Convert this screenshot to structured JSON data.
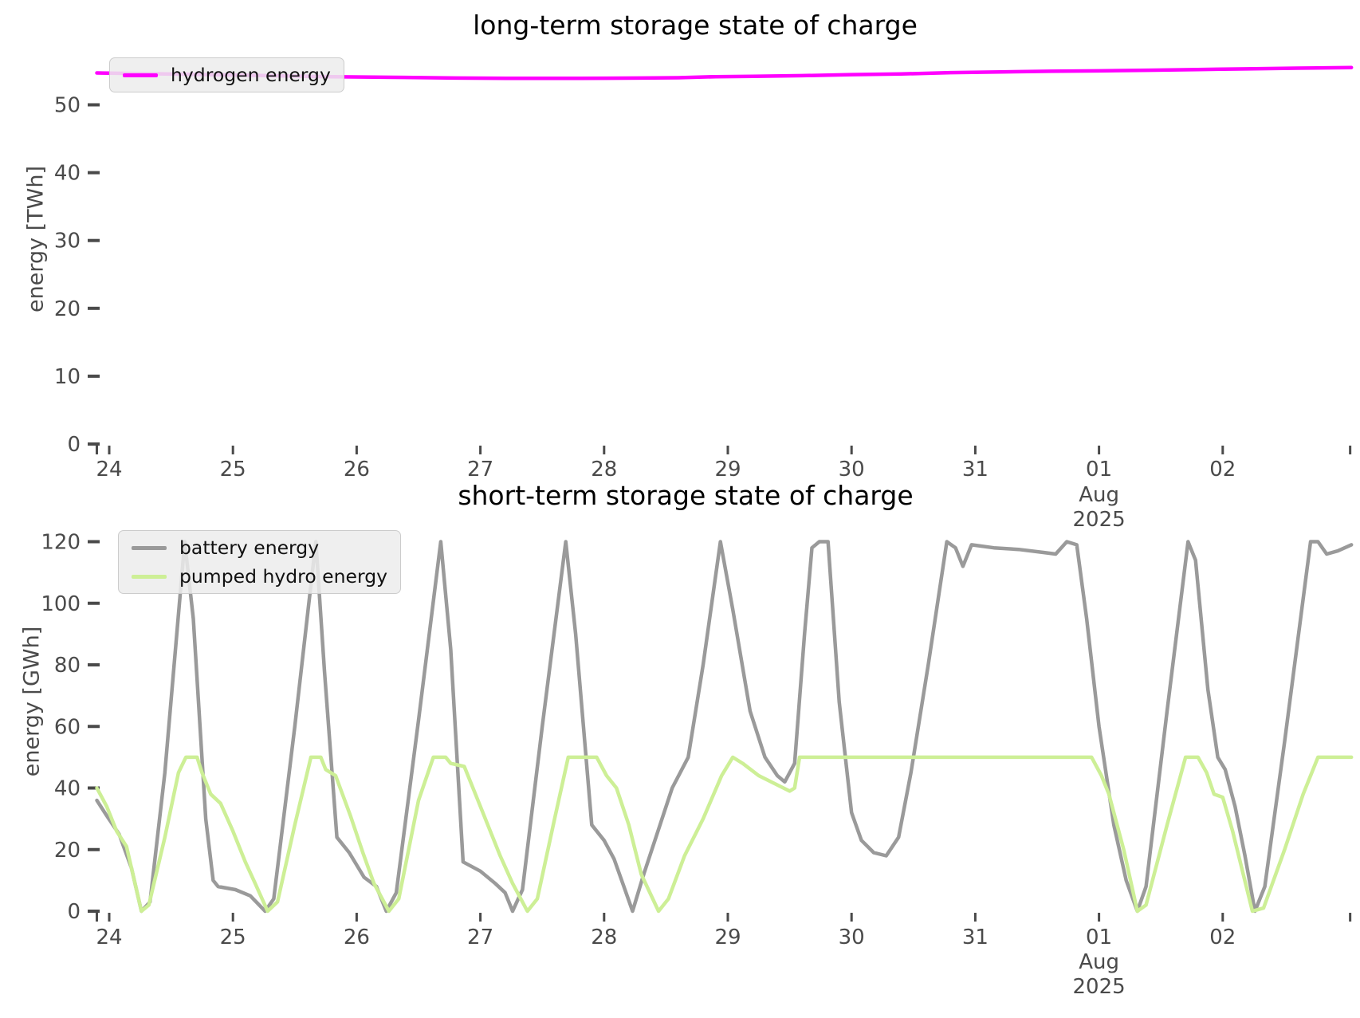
{
  "figure": {
    "background": "#ffffff",
    "tick_color": "#4a4a4a",
    "title_color": "#000000",
    "legend_bg": "#ececec",
    "legend_border": "#cccccc"
  },
  "chart_data": [
    {
      "type": "line",
      "title": "long-term storage state of charge",
      "ylabel": "energy [TWh]",
      "xlabel": "",
      "grid": false,
      "legend_position": "upper-left",
      "ylim": [
        0,
        58.2
      ],
      "xlim_days": [
        23.9,
        34.04
      ],
      "yticks": [
        0,
        10,
        20,
        30,
        40,
        50
      ],
      "xticks": [
        {
          "x": 23.9,
          "label": ""
        },
        {
          "x": 24,
          "label": "24"
        },
        {
          "x": 25,
          "label": "25"
        },
        {
          "x": 26,
          "label": "26"
        },
        {
          "x": 27,
          "label": "27"
        },
        {
          "x": 28,
          "label": "28"
        },
        {
          "x": 29,
          "label": "29"
        },
        {
          "x": 30,
          "label": "30"
        },
        {
          "x": 31,
          "label": "31"
        },
        {
          "x": 32,
          "label": "01",
          "sublabels": [
            "Aug",
            "2025"
          ]
        },
        {
          "x": 33,
          "label": "02"
        },
        {
          "x": 34.03,
          "label": ""
        }
      ],
      "x_unit": "day of July 2025 (32 = Aug 01, 33 = Aug 02)",
      "series": [
        {
          "name": "hydrogen energy",
          "color": "#ff00ff",
          "points": [
            [
              23.9,
              54.7
            ],
            [
              24.3,
              54.6
            ],
            [
              24.8,
              54.45
            ],
            [
              25.3,
              54.3
            ],
            [
              25.8,
              54.15
            ],
            [
              26.3,
              54.05
            ],
            [
              26.8,
              53.95
            ],
            [
              27.3,
              53.9
            ],
            [
              27.8,
              53.9
            ],
            [
              28.3,
              53.95
            ],
            [
              28.6,
              54.0
            ],
            [
              28.9,
              54.15
            ],
            [
              29.2,
              54.2
            ],
            [
              29.6,
              54.3
            ],
            [
              30.0,
              54.45
            ],
            [
              30.4,
              54.55
            ],
            [
              30.8,
              54.75
            ],
            [
              31.2,
              54.85
            ],
            [
              31.6,
              54.95
            ],
            [
              32.0,
              55.0
            ],
            [
              32.4,
              55.1
            ],
            [
              32.8,
              55.2
            ],
            [
              33.2,
              55.3
            ],
            [
              33.6,
              55.4
            ],
            [
              34.04,
              55.5
            ]
          ]
        }
      ]
    },
    {
      "type": "line",
      "title": "short-term storage state of charge",
      "ylabel": "energy [GWh]",
      "xlabel": "",
      "grid": false,
      "legend_position": "upper-left",
      "ylim": [
        0,
        136
      ],
      "xlim_days": [
        23.9,
        34.04
      ],
      "yticks": [
        0,
        20,
        40,
        60,
        80,
        100,
        120
      ],
      "xticks": [
        {
          "x": 23.9,
          "label": ""
        },
        {
          "x": 24,
          "label": "24"
        },
        {
          "x": 25,
          "label": "25"
        },
        {
          "x": 26,
          "label": "26"
        },
        {
          "x": 27,
          "label": "27"
        },
        {
          "x": 28,
          "label": "28"
        },
        {
          "x": 29,
          "label": "29"
        },
        {
          "x": 30,
          "label": "30"
        },
        {
          "x": 31,
          "label": "31"
        },
        {
          "x": 32,
          "label": "01",
          "sublabels": [
            "Aug",
            "2025"
          ]
        },
        {
          "x": 33,
          "label": "02"
        },
        {
          "x": 34.03,
          "label": ""
        }
      ],
      "x_unit": "day of July 2025 (32 = Aug 01, 33 = Aug 02)",
      "series": [
        {
          "name": "battery energy",
          "color": "#9a9a9a",
          "points": [
            [
              23.9,
              36
            ],
            [
              23.98,
              31
            ],
            [
              24.08,
              25
            ],
            [
              24.18,
              14
            ],
            [
              24.26,
              0
            ],
            [
              24.33,
              3
            ],
            [
              24.45,
              45
            ],
            [
              24.61,
              120
            ],
            [
              24.68,
              95
            ],
            [
              24.78,
              30
            ],
            [
              24.84,
              10
            ],
            [
              24.88,
              8
            ],
            [
              25.02,
              7
            ],
            [
              25.14,
              5
            ],
            [
              25.26,
              0
            ],
            [
              25.33,
              4
            ],
            [
              25.5,
              60
            ],
            [
              25.67,
              120
            ],
            [
              25.74,
              78
            ],
            [
              25.84,
              24
            ],
            [
              25.94,
              19
            ],
            [
              26.06,
              11
            ],
            [
              26.16,
              8
            ],
            [
              26.24,
              0
            ],
            [
              26.32,
              6
            ],
            [
              26.5,
              62
            ],
            [
              26.68,
              120
            ],
            [
              26.76,
              85
            ],
            [
              26.86,
              16
            ],
            [
              27.0,
              13
            ],
            [
              27.12,
              9
            ],
            [
              27.2,
              6
            ],
            [
              27.26,
              0
            ],
            [
              27.34,
              7
            ],
            [
              27.5,
              60
            ],
            [
              27.69,
              120
            ],
            [
              27.77,
              90
            ],
            [
              27.9,
              28
            ],
            [
              28.0,
              23
            ],
            [
              28.08,
              17
            ],
            [
              28.16,
              8
            ],
            [
              28.23,
              0
            ],
            [
              28.32,
              12
            ],
            [
              28.55,
              40
            ],
            [
              28.68,
              50
            ],
            [
              28.8,
              80
            ],
            [
              28.94,
              120
            ],
            [
              29.04,
              98
            ],
            [
              29.18,
              65
            ],
            [
              29.3,
              50
            ],
            [
              29.4,
              44
            ],
            [
              29.46,
              42
            ],
            [
              29.54,
              48
            ],
            [
              29.62,
              90
            ],
            [
              29.68,
              118
            ],
            [
              29.74,
              120
            ],
            [
              29.81,
              120
            ],
            [
              29.9,
              68
            ],
            [
              30.0,
              32
            ],
            [
              30.08,
              23
            ],
            [
              30.18,
              19
            ],
            [
              30.28,
              18
            ],
            [
              30.38,
              24
            ],
            [
              30.48,
              45
            ],
            [
              30.62,
              80
            ],
            [
              30.77,
              120
            ],
            [
              30.84,
              118
            ],
            [
              30.9,
              112
            ],
            [
              30.97,
              119
            ],
            [
              31.15,
              118
            ],
            [
              31.35,
              117.5
            ],
            [
              31.55,
              116.5
            ],
            [
              31.65,
              116
            ],
            [
              31.74,
              120
            ],
            [
              31.82,
              119
            ],
            [
              31.9,
              95
            ],
            [
              32.0,
              60
            ],
            [
              32.12,
              28
            ],
            [
              32.22,
              10
            ],
            [
              32.31,
              0
            ],
            [
              32.38,
              8
            ],
            [
              32.55,
              65
            ],
            [
              32.72,
              120
            ],
            [
              32.78,
              114
            ],
            [
              32.88,
              72
            ],
            [
              32.96,
              50
            ],
            [
              33.02,
              46
            ],
            [
              33.1,
              34
            ],
            [
              33.18,
              18
            ],
            [
              33.26,
              0
            ],
            [
              33.34,
              8
            ],
            [
              33.5,
              55
            ],
            [
              33.71,
              120
            ],
            [
              33.77,
              120
            ],
            [
              33.84,
              116
            ],
            [
              33.93,
              117
            ],
            [
              34.04,
              119
            ]
          ]
        },
        {
          "name": "pumped hydro energy",
          "color": "#cdef96",
          "points": [
            [
              23.9,
              40
            ],
            [
              23.98,
              34
            ],
            [
              24.06,
              26
            ],
            [
              24.14,
              21
            ],
            [
              24.26,
              0
            ],
            [
              24.32,
              2
            ],
            [
              24.45,
              24
            ],
            [
              24.56,
              45
            ],
            [
              24.62,
              50
            ],
            [
              24.71,
              50
            ],
            [
              24.75,
              45
            ],
            [
              24.82,
              38
            ],
            [
              24.9,
              35
            ],
            [
              25.0,
              26
            ],
            [
              25.1,
              16
            ],
            [
              25.18,
              9
            ],
            [
              25.28,
              0
            ],
            [
              25.36,
              3
            ],
            [
              25.5,
              28
            ],
            [
              25.63,
              50
            ],
            [
              25.71,
              50
            ],
            [
              25.75,
              46
            ],
            [
              25.83,
              44
            ],
            [
              25.95,
              31
            ],
            [
              26.05,
              19
            ],
            [
              26.14,
              9
            ],
            [
              26.26,
              0
            ],
            [
              26.34,
              4
            ],
            [
              26.5,
              36
            ],
            [
              26.62,
              50
            ],
            [
              26.72,
              50
            ],
            [
              26.76,
              48
            ],
            [
              26.87,
              47
            ],
            [
              26.96,
              38
            ],
            [
              27.06,
              28
            ],
            [
              27.16,
              18
            ],
            [
              27.26,
              9
            ],
            [
              27.38,
              0
            ],
            [
              27.46,
              4
            ],
            [
              27.6,
              30
            ],
            [
              27.71,
              50
            ],
            [
              27.94,
              50
            ],
            [
              28.02,
              44
            ],
            [
              28.1,
              40
            ],
            [
              28.2,
              28
            ],
            [
              28.3,
              12
            ],
            [
              28.44,
              0
            ],
            [
              28.52,
              4
            ],
            [
              28.65,
              18
            ],
            [
              28.8,
              30
            ],
            [
              28.95,
              44
            ],
            [
              29.04,
              50
            ],
            [
              29.12,
              48
            ],
            [
              29.25,
              44
            ],
            [
              29.35,
              42
            ],
            [
              29.45,
              40
            ],
            [
              29.5,
              39
            ],
            [
              29.54,
              40
            ],
            [
              29.58,
              50
            ],
            [
              31.94,
              50
            ],
            [
              32.02,
              44
            ],
            [
              32.08,
              38
            ],
            [
              32.2,
              20
            ],
            [
              32.31,
              0
            ],
            [
              32.38,
              2
            ],
            [
              32.55,
              28
            ],
            [
              32.7,
              50
            ],
            [
              32.8,
              50
            ],
            [
              32.87,
              45
            ],
            [
              32.93,
              38
            ],
            [
              33.0,
              37
            ],
            [
              33.08,
              26
            ],
            [
              33.16,
              13
            ],
            [
              33.24,
              0
            ],
            [
              33.33,
              1
            ],
            [
              33.5,
              20
            ],
            [
              33.65,
              38
            ],
            [
              33.77,
              50
            ],
            [
              34.04,
              50
            ]
          ]
        }
      ]
    }
  ]
}
